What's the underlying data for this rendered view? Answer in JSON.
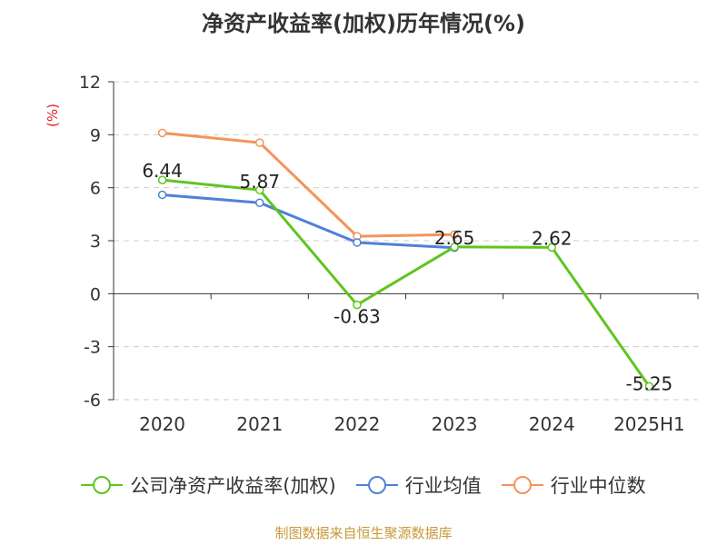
{
  "title": "净资产收益率(加权)历年情况(%)",
  "source": "制图数据来自恒生聚源数据库",
  "chart_data": {
    "type": "line",
    "title": "净资产收益率(加权)历年情况(%)",
    "ylabel": "(%)",
    "xlabel": "",
    "categories": [
      "2020",
      "2021",
      "2022",
      "2023",
      "2024",
      "2025H1"
    ],
    "ylim": [
      -6,
      12
    ],
    "yticks": [
      12,
      9,
      6,
      3,
      0,
      -3,
      -6
    ],
    "ytick_labels": [
      "12",
      "9",
      "6",
      "3",
      "0",
      "-3",
      "-6"
    ],
    "grid": true,
    "legend_position": "bottom",
    "series": [
      {
        "name": "公司净资产收益率(加权)",
        "color": "#5fc520",
        "values": [
          6.44,
          5.87,
          -0.63,
          2.65,
          2.62,
          -5.25
        ],
        "labels": [
          "6.44",
          "5.87",
          "-0.63",
          "2.65",
          "2.62",
          "-5.25"
        ]
      },
      {
        "name": "行业均值",
        "color": "#4f81d9",
        "values": [
          5.6,
          5.15,
          2.9,
          2.6,
          null,
          null
        ]
      },
      {
        "name": "行业中位数",
        "color": "#f5935a",
        "values": [
          9.1,
          8.55,
          3.25,
          3.35,
          null,
          null
        ]
      }
    ]
  }
}
